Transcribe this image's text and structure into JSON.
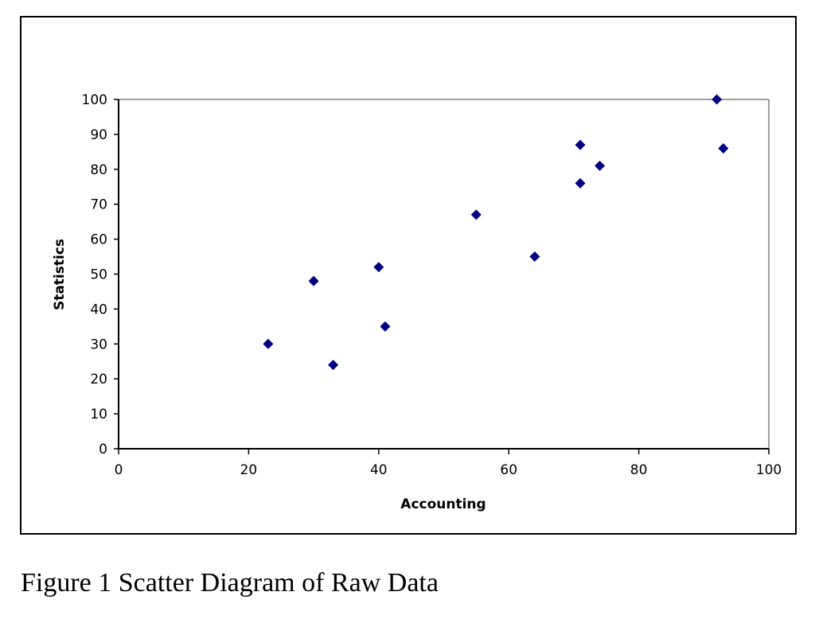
{
  "chart_data": {
    "type": "scatter",
    "xlabel": "Accounting",
    "ylabel": "Statistics",
    "xlim": [
      0,
      100
    ],
    "ylim": [
      0,
      100
    ],
    "x_ticks": [
      0,
      20,
      40,
      60,
      80,
      100
    ],
    "y_ticks": [
      0,
      10,
      20,
      30,
      40,
      50,
      60,
      70,
      80,
      90,
      100
    ],
    "grid": false,
    "marker": "diamond",
    "marker_color": "#000080",
    "series": [
      {
        "points": [
          {
            "x": 23,
            "y": 30
          },
          {
            "x": 30,
            "y": 48
          },
          {
            "x": 33,
            "y": 24
          },
          {
            "x": 40,
            "y": 52
          },
          {
            "x": 41,
            "y": 35
          },
          {
            "x": 55,
            "y": 67
          },
          {
            "x": 64,
            "y": 55
          },
          {
            "x": 71,
            "y": 87
          },
          {
            "x": 71,
            "y": 76
          },
          {
            "x": 74,
            "y": 81
          },
          {
            "x": 92,
            "y": 100
          },
          {
            "x": 93,
            "y": 86
          }
        ]
      }
    ]
  },
  "caption": "Figure 1 Scatter Diagram of Raw Data"
}
